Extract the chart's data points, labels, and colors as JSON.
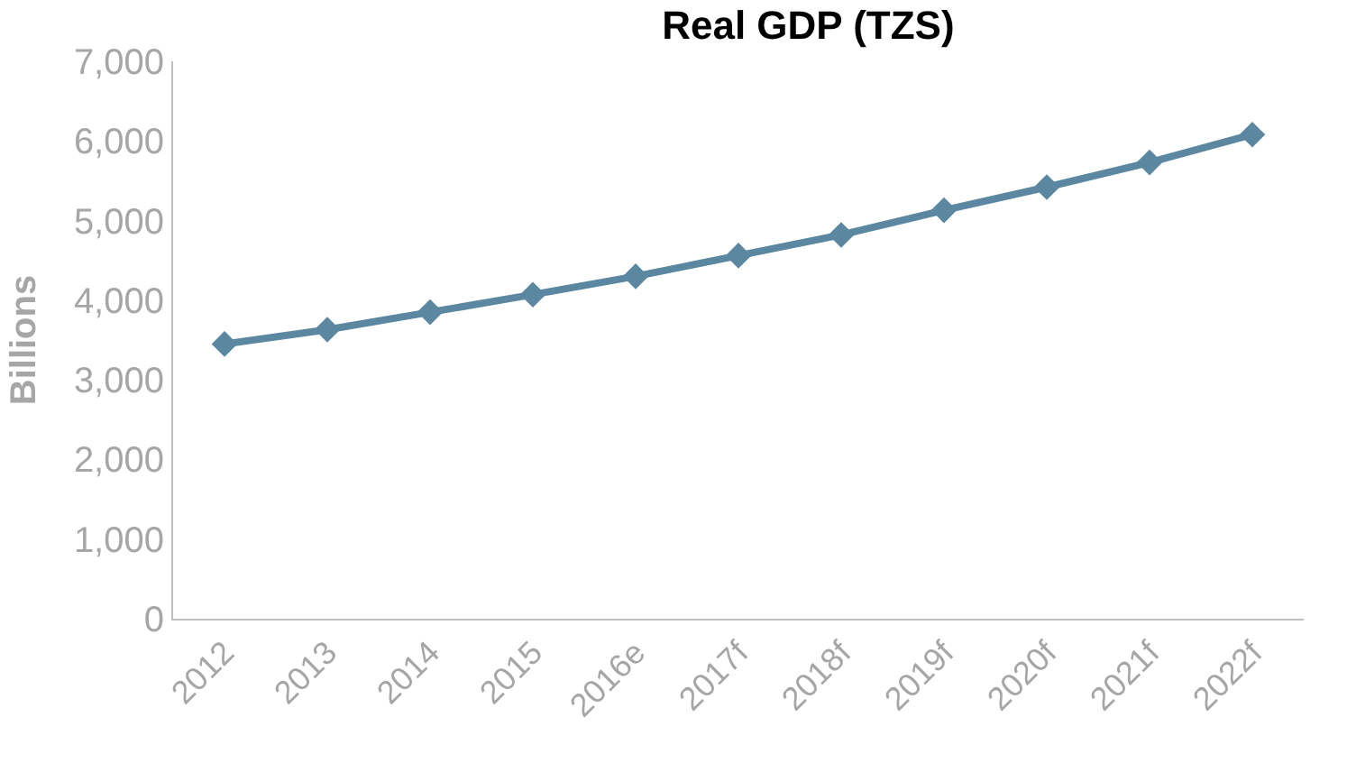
{
  "chart_data": {
    "type": "line",
    "title": "Real GDP (TZS)",
    "ylabel": "Billions",
    "categories": [
      "2012",
      "2013",
      "2014",
      "2015",
      "2016e",
      "2017f",
      "2018f",
      "2019f",
      "2020f",
      "2021f",
      "2022f"
    ],
    "series": [
      {
        "color": "#5b87a1",
        "values": [
          3450,
          3630,
          3850,
          4070,
          4300,
          4560,
          4820,
          5130,
          5420,
          5730,
          6080
        ]
      }
    ],
    "ylim": [
      0,
      7000
    ],
    "yticks": [
      {
        "value": 0,
        "label": "0"
      },
      {
        "value": 1000,
        "label": "1,000"
      },
      {
        "value": 2000,
        "label": "2,000"
      },
      {
        "value": 3000,
        "label": "3,000"
      },
      {
        "value": 4000,
        "label": "4,000"
      },
      {
        "value": 5000,
        "label": "5,000"
      },
      {
        "value": 6000,
        "label": "6,000"
      },
      {
        "value": 7000,
        "label": "7,000"
      }
    ],
    "marker": "diamond",
    "line_style": "solid"
  }
}
